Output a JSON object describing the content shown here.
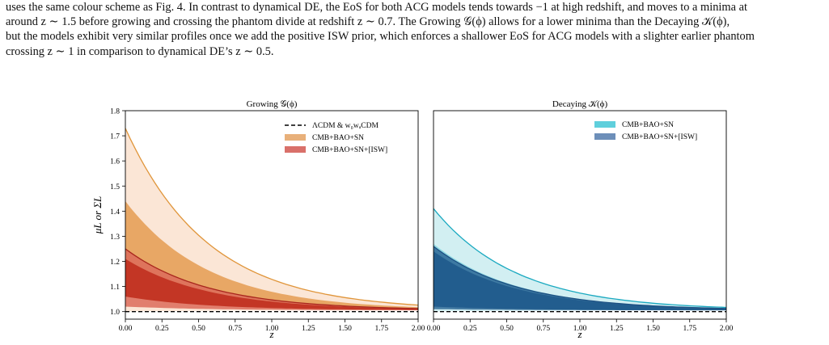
{
  "paragraph": {
    "line1": "uses the same colour scheme as Fig. 4. In contrast to dynamical DE, the EoS for both ACG models tends towards −1 at high redshift, and moves to a minima at",
    "line2": "around z ∼ 1.5 before growing and crossing the phantom divide at redshift z ∼ 0.7. The Growing 𝒢(ϕ) allows for a lower minima than the Decaying 𝒦(ϕ),",
    "line3": "but the models exhibit very similar profiles once we add the positive ISW prior, which enforces a shallower EoS for ACG models with a slighter earlier phantom",
    "line4": "crossing z ∼ 1 in comparison to dynamical DE’s z ∼ 0.5.",
    "fig_ref": "4"
  },
  "chart_data": [
    {
      "type": "area",
      "title": "Growing 𝒢(ϕ)",
      "xlabel": "z",
      "ylabel": "μL or ΣL",
      "xlim": [
        0,
        2
      ],
      "ylim": [
        0.97,
        1.8
      ],
      "x_ticks": [
        "0.00",
        "0.25",
        "0.50",
        "0.75",
        "1.00",
        "1.25",
        "1.50",
        "1.75",
        "2.00"
      ],
      "y_ticks": [
        "1.0",
        "1.1",
        "1.2",
        "1.3",
        "1.4",
        "1.5",
        "1.6",
        "1.7",
        "1.8"
      ],
      "grid": false,
      "legend_position": "top-right",
      "legend": [
        {
          "label": "ΛCDM & w₀wₐCDM",
          "style": "dashed-line",
          "color": "#000000"
        },
        {
          "label": "CMB+BAO+SN",
          "style": "patch",
          "color": "#e8b07a"
        },
        {
          "label": "CMB+BAO+SN+[ISW]",
          "style": "patch",
          "color": "#d9706a"
        }
      ],
      "series": [
        {
          "name": "ΛCDM & w₀wₐCDM",
          "kind": "reference",
          "value": 1.0
        },
        {
          "name": "CMB+BAO+SN",
          "kind": "band",
          "upper_at_z0": 1.73,
          "inner_upper_at_z0": 1.44,
          "inner_lower_at_z0": 1.06,
          "lower_at_z0": 1.0,
          "edge_color": "#e0953a",
          "outer_fill": "#fbe6d6",
          "inner_fill": "#e8a765"
        },
        {
          "name": "CMB+BAO+SN+[ISW]",
          "kind": "band",
          "upper_at_z0": 1.25,
          "inner_upper_at_z0": 1.21,
          "inner_lower_at_z0": 1.06,
          "lower_at_z0": 1.02,
          "edge_color": "#a8251c",
          "outer_fill": "#dc6b5a",
          "inner_fill": "#c0301f"
        }
      ]
    },
    {
      "type": "area",
      "title": "Decaying 𝒦(ϕ)",
      "xlabel": "z",
      "xlim": [
        0,
        2
      ],
      "ylim": [
        0.97,
        1.8
      ],
      "x_ticks": [
        "0.00",
        "0.25",
        "0.50",
        "0.75",
        "1.00",
        "1.25",
        "1.50",
        "1.75",
        "2.00"
      ],
      "grid": false,
      "legend_position": "top-right",
      "legend": [
        {
          "label": "CMB+BAO+SN",
          "style": "patch",
          "color": "#5fcfdc"
        },
        {
          "label": "CMB+BAO+SN+[ISW]",
          "style": "patch",
          "color": "#6d8fb9"
        }
      ],
      "series": [
        {
          "name": "CMB+BAO+SN",
          "kind": "band",
          "upper_at_z0": 1.41,
          "inner_upper_at_z0": 1.27,
          "inner_lower_at_z0": 1.03,
          "lower_at_z0": 1.0,
          "edge_color": "#1aa9c0",
          "outer_fill": "#d2eff2",
          "inner_fill": "#8fd8e2"
        },
        {
          "name": "CMB+BAO+SN+[ISW]",
          "kind": "band",
          "upper_at_z0": 1.26,
          "inner_upper_at_z0": 1.24,
          "inner_lower_at_z0": 1.02,
          "lower_at_z0": 1.01,
          "edge_color": "#1c4f82",
          "outer_fill": "#2f6897",
          "inner_fill": "#1f5a8c"
        }
      ]
    }
  ]
}
